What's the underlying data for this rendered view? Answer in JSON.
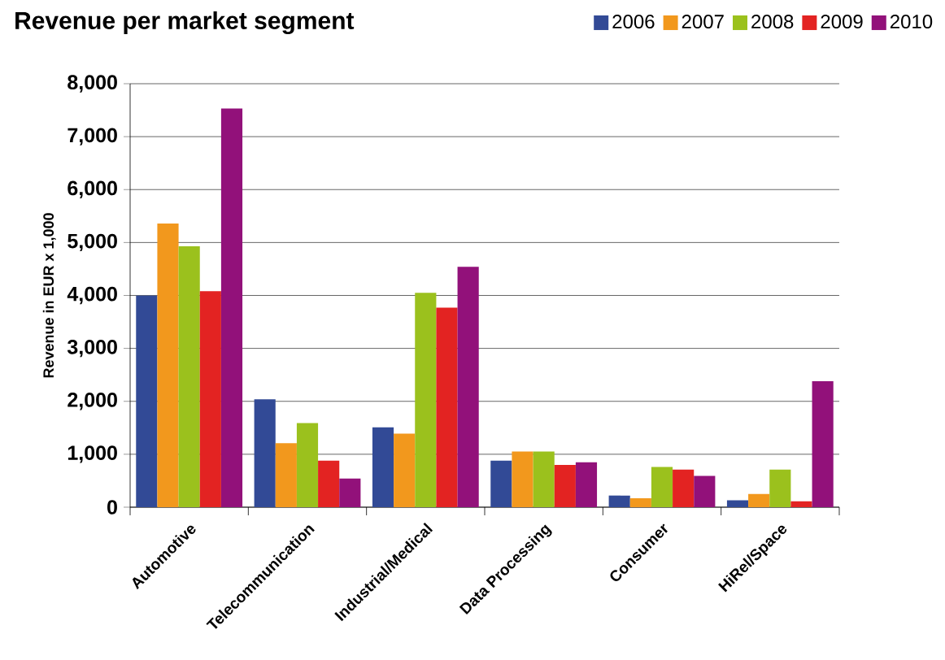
{
  "chart_data": {
    "type": "bar",
    "title": "Revenue per market segment",
    "ylabel": "Revenue in EUR x 1,000",
    "categories": [
      "Automotive",
      "Telecommunication",
      "Industrial/Medical",
      "Data Processing",
      "Consumer",
      "HiRel/Space"
    ],
    "series": [
      {
        "name": "2006",
        "color": "#324a96",
        "values": [
          4000,
          2040,
          1510,
          880,
          220,
          130
        ]
      },
      {
        "name": "2007",
        "color": "#f2981d",
        "values": [
          5360,
          1210,
          1390,
          1050,
          170,
          250
        ]
      },
      {
        "name": "2008",
        "color": "#9bc11d",
        "values": [
          4930,
          1590,
          4050,
          1050,
          760,
          710
        ]
      },
      {
        "name": "2009",
        "color": "#e32322",
        "values": [
          4080,
          880,
          3770,
          800,
          710,
          110
        ]
      },
      {
        "name": "2010",
        "color": "#92117a",
        "values": [
          7530,
          540,
          4540,
          850,
          590,
          2380
        ]
      }
    ],
    "ylim": [
      0,
      8000
    ],
    "yticks": [
      0,
      {
        "value": 1000,
        "label": "1,000"
      },
      {
        "value": 2000,
        "label": "2,000"
      },
      {
        "value": 3000,
        "label": "3,000"
      },
      {
        "value": 4000,
        "label": "4,000"
      },
      {
        "value": 5000,
        "label": "5,000"
      },
      {
        "value": 6000,
        "label": "6,000"
      },
      {
        "value": 7000,
        "label": "7,000"
      },
      {
        "value": 8000,
        "label": "8,000"
      }
    ],
    "grid": "y",
    "legend": "top right"
  }
}
